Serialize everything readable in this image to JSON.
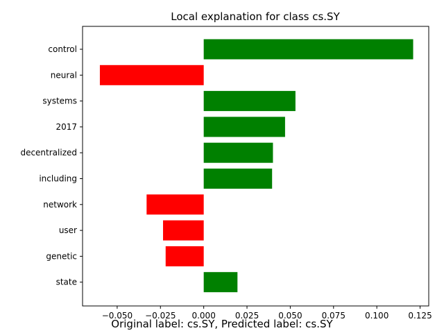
{
  "chart_data": {
    "type": "bar",
    "orientation": "horizontal",
    "title": "Local explanation for class cs.SY",
    "xlabel": "",
    "ylabel": "",
    "categories": [
      "control",
      "neural",
      "systems",
      "2017",
      "decentralized",
      "including",
      "network",
      "user",
      "genetic",
      "state"
    ],
    "values": [
      0.121,
      -0.06,
      0.053,
      0.047,
      0.04,
      0.0395,
      -0.033,
      -0.0235,
      -0.022,
      0.0195
    ],
    "xlim": [
      -0.07,
      0.13
    ],
    "xticks": [
      -0.05,
      -0.025,
      0.0,
      0.025,
      0.05,
      0.075,
      0.1,
      0.125
    ],
    "xtick_labels": [
      "−0.050",
      "−0.025",
      "0.000",
      "0.025",
      "0.050",
      "0.075",
      "0.100",
      "0.125"
    ],
    "positive_color": "#008000",
    "negative_color": "#ff0000",
    "grid": false
  },
  "caption": "Original label: cs.SY, Predicted label: cs.SY"
}
